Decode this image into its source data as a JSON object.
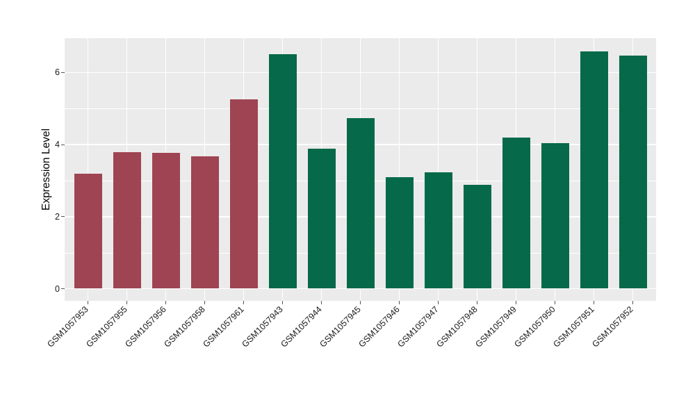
{
  "chart_data": {
    "type": "bar",
    "title": "",
    "xlabel": "",
    "ylabel": "Expression Level",
    "categories": [
      "GSM1057953",
      "GSM1057955",
      "GSM1057956",
      "GSM1057958",
      "GSM1057961",
      "GSM1057943",
      "GSM1057944",
      "GSM1057945",
      "GSM1057946",
      "GSM1057947",
      "GSM1057948",
      "GSM1057949",
      "GSM1057950",
      "GSM1057951",
      "GSM1057952"
    ],
    "values": [
      3.2,
      3.79,
      3.77,
      3.68,
      5.25,
      6.5,
      3.89,
      4.73,
      3.1,
      3.23,
      2.89,
      4.2,
      4.04,
      6.58,
      6.48
    ],
    "bar_groups": [
      "red",
      "red",
      "red",
      "red",
      "red",
      "green",
      "green",
      "green",
      "green",
      "green",
      "green",
      "green",
      "green",
      "green",
      "green"
    ],
    "group_colors": {
      "red": "#9e4452",
      "green": "#066949"
    },
    "y_ticks": [
      0,
      2,
      4,
      6
    ],
    "y_minor_ticks": [
      1,
      3,
      5
    ],
    "ylim": [
      -0.33,
      6.95
    ],
    "grid": true,
    "legend": "none",
    "panel_background": "#ebebeb",
    "gridline_color": "#ffffff",
    "text_color": "#1a1a1a"
  }
}
